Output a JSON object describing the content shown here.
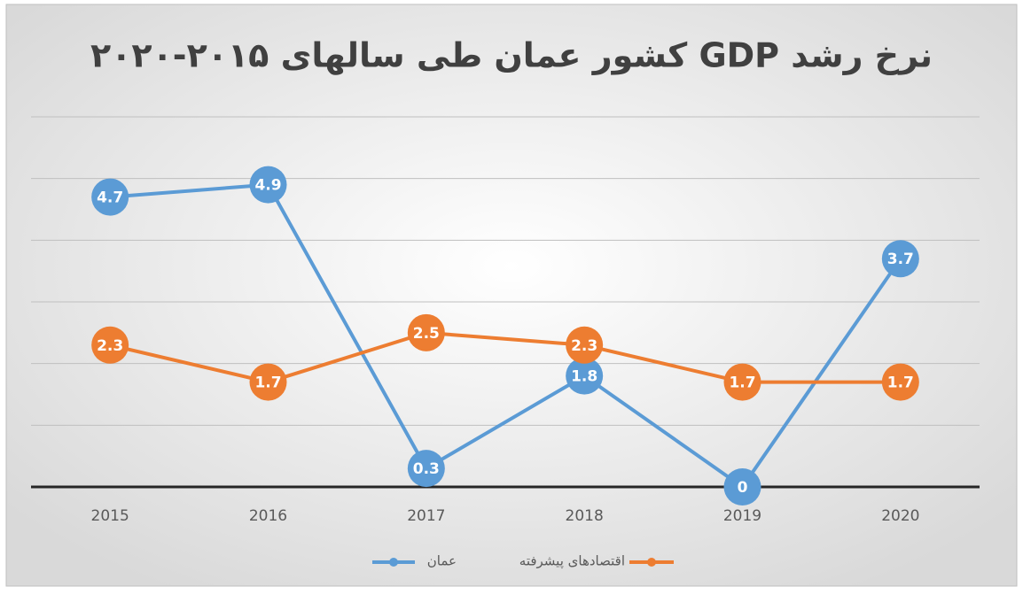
{
  "chart_data": {
    "type": "line",
    "title": "نرخ رشد GDP کشور عمان طی سالهای ۲۰۱۵-۲۰۲۰",
    "categories": [
      "2015",
      "2016",
      "2017",
      "2018",
      "2019",
      "2020"
    ],
    "series": [
      {
        "name": "عمان",
        "color": "#5b9bd5",
        "values": [
          4.7,
          4.9,
          0.3,
          1.8,
          0,
          3.7
        ]
      },
      {
        "name": "اقتصادهای پیشرفته",
        "color": "#ed7d31",
        "values": [
          2.3,
          1.7,
          2.5,
          2.3,
          1.7,
          1.7
        ]
      }
    ],
    "ylim": [
      0,
      6
    ],
    "yticks": [
      0,
      1,
      2,
      3,
      4,
      5,
      6
    ],
    "grid": true,
    "legend": "bottom"
  }
}
